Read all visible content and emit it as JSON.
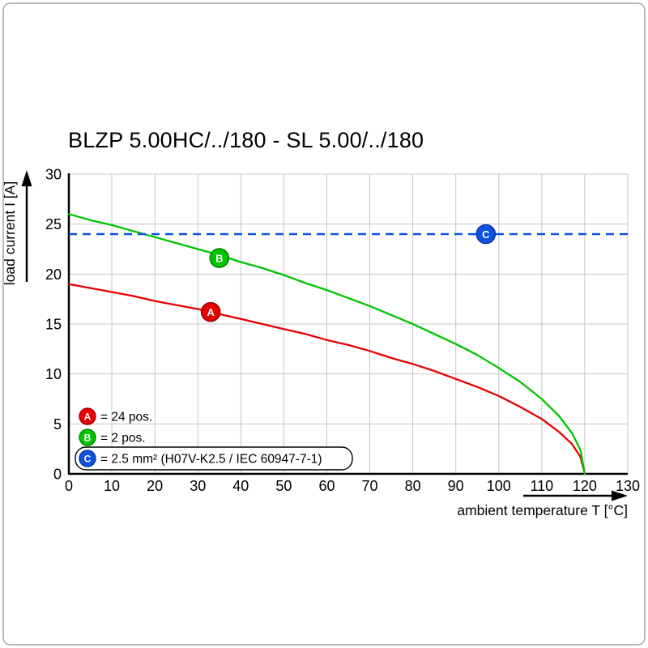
{
  "chart_data": {
    "type": "line",
    "title": "BLZP 5.00HC/../180 - SL 5.00/../180",
    "xlabel": "ambient temperature T [°C]",
    "ylabel": "load current I [A]",
    "xlim": [
      0,
      130
    ],
    "ylim": [
      0,
      30
    ],
    "xticks": [
      0,
      10,
      20,
      30,
      40,
      50,
      60,
      70,
      80,
      90,
      100,
      110,
      120,
      130
    ],
    "yticks": [
      0,
      5,
      10,
      15,
      20,
      25,
      30
    ],
    "grid": true,
    "legend_position": "bottom-left-inside",
    "series": [
      {
        "id": "A",
        "name": "24 pos.",
        "color": "#e60000",
        "style": "solid-curve",
        "points": [
          [
            0,
            19.0
          ],
          [
            5,
            18.6
          ],
          [
            10,
            18.2
          ],
          [
            15,
            17.8
          ],
          [
            20,
            17.3
          ],
          [
            25,
            16.9
          ],
          [
            30,
            16.5
          ],
          [
            35,
            16.0
          ],
          [
            40,
            15.5
          ],
          [
            45,
            15.0
          ],
          [
            50,
            14.5
          ],
          [
            55,
            14.0
          ],
          [
            60,
            13.4
          ],
          [
            65,
            12.9
          ],
          [
            70,
            12.3
          ],
          [
            75,
            11.6
          ],
          [
            80,
            11.0
          ],
          [
            85,
            10.3
          ],
          [
            90,
            9.5
          ],
          [
            95,
            8.7
          ],
          [
            100,
            7.8
          ],
          [
            105,
            6.7
          ],
          [
            110,
            5.5
          ],
          [
            114,
            4.2
          ],
          [
            117,
            3.0
          ],
          [
            119,
            1.7
          ],
          [
            120,
            0
          ]
        ]
      },
      {
        "id": "B",
        "name": "2 pos.",
        "color": "#00c400",
        "style": "solid-curve",
        "points": [
          [
            0,
            26.0
          ],
          [
            5,
            25.4
          ],
          [
            10,
            24.9
          ],
          [
            15,
            24.3
          ],
          [
            20,
            23.7
          ],
          [
            25,
            23.1
          ],
          [
            30,
            22.5
          ],
          [
            35,
            21.9
          ],
          [
            40,
            21.2
          ],
          [
            45,
            20.6
          ],
          [
            50,
            19.9
          ],
          [
            55,
            19.1
          ],
          [
            60,
            18.4
          ],
          [
            65,
            17.6
          ],
          [
            70,
            16.8
          ],
          [
            75,
            15.9
          ],
          [
            80,
            15.0
          ],
          [
            85,
            14.0
          ],
          [
            90,
            13.0
          ],
          [
            95,
            11.9
          ],
          [
            100,
            10.6
          ],
          [
            105,
            9.2
          ],
          [
            110,
            7.5
          ],
          [
            114,
            5.8
          ],
          [
            117,
            4.1
          ],
          [
            119,
            2.4
          ],
          [
            120,
            0
          ]
        ]
      },
      {
        "id": "C",
        "name": "2.5 mm² (H07V-K2.5 / IEC 60947-7-1)",
        "color": "#0f52e0",
        "style": "dashed-horizontal",
        "y": 24,
        "x_range": [
          0,
          130
        ]
      }
    ],
    "markers": [
      {
        "letter": "A",
        "color": "#e60000",
        "t": 33,
        "i": 16.2
      },
      {
        "letter": "B",
        "color": "#00c400",
        "t": 35,
        "i": 21.6
      },
      {
        "letter": "C",
        "color": "#0f52e0",
        "t": 97,
        "i": 24
      }
    ],
    "legend": [
      {
        "letter": "A",
        "color": "#e60000",
        "label": "= 24 pos.",
        "boxed": false
      },
      {
        "letter": "B",
        "color": "#00c400",
        "label": "= 2 pos.",
        "boxed": false
      },
      {
        "letter": "C",
        "color": "#0f52e0",
        "label": "= 2.5 mm² (H07V-K2.5 / IEC 60947-7-1)",
        "boxed": true
      }
    ]
  }
}
